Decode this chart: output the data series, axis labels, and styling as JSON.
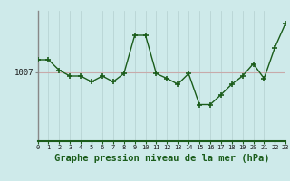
{
  "x": [
    0,
    1,
    2,
    3,
    4,
    5,
    6,
    7,
    8,
    9,
    10,
    11,
    12,
    13,
    14,
    15,
    16,
    17,
    18,
    19,
    20,
    21,
    22,
    23
  ],
  "y": [
    1008.5,
    1008.5,
    1007.2,
    1006.5,
    1006.5,
    1005.8,
    1006.5,
    1005.8,
    1006.8,
    1011.5,
    1011.5,
    1006.8,
    1006.2,
    1005.5,
    1006.8,
    1003.0,
    1003.0,
    1004.2,
    1005.5,
    1006.5,
    1008.0,
    1006.2,
    1010.0,
    1013.0
  ],
  "line_color": "#1a5c1a",
  "marker": "+",
  "marker_size": 4,
  "marker_lw": 1.2,
  "bg_color": "#ceeaea",
  "vgrid_color": "#b8d4d4",
  "hgrid_color": "#c8aaaa",
  "xlabel": "Graphe pression niveau de la mer (hPa)",
  "ytick_label": "1007",
  "ytick_value": 1007.0,
  "ylim": [
    998.5,
    1014.5
  ],
  "xlim": [
    0,
    23
  ],
  "left_spine_color": "#888888",
  "bottom_spine_color": "#1a5c1a",
  "xlabel_fontsize": 7.5,
  "xlabel_fontweight": "bold",
  "xlabel_color": "#1a5c1a",
  "xtick_fontsize": 5.0,
  "ytick_fontsize": 6.5,
  "linewidth": 1.0
}
